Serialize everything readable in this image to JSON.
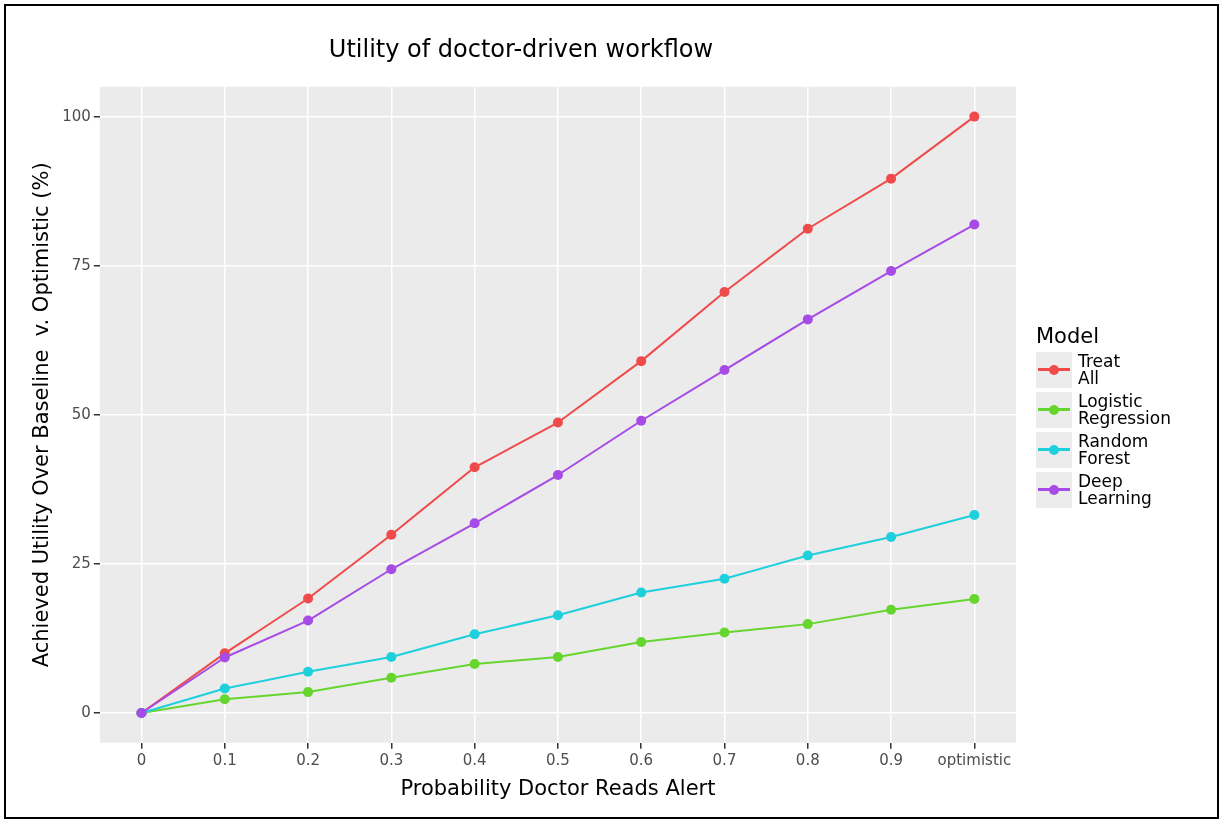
{
  "chart_data": {
    "type": "line",
    "title": "Utility of doctor-driven workflow",
    "xlabel": "Probability Doctor Reads Alert",
    "ylabel": "Achieved Utility Over Baseline  v. Optimistic (%)",
    "legend_title": "Model",
    "categories": [
      "0",
      "0.1",
      "0.2",
      "0.3",
      "0.4",
      "0.5",
      "0.6",
      "0.7",
      "0.8",
      "0.9",
      "optimistic"
    ],
    "series": [
      {
        "name": "Treat All",
        "color": "#f04b4b",
        "values": [
          0,
          10,
          19.2,
          29.9,
          41.2,
          48.7,
          59,
          70.6,
          81.2,
          89.6,
          100
        ]
      },
      {
        "name": "Logistic Regression",
        "color": "#66d62e",
        "values": [
          0,
          2.3,
          3.5,
          5.9,
          8.2,
          9.4,
          11.9,
          13.5,
          14.9,
          17.3,
          19.1
        ]
      },
      {
        "name": "Random Forest",
        "color": "#1ecfdc",
        "values": [
          0,
          4.1,
          6.9,
          9.4,
          13.2,
          16.4,
          20.2,
          22.5,
          26.4,
          29.5,
          33.2
        ]
      },
      {
        "name": "Deep Learning",
        "color": "#a64be6",
        "values": [
          0,
          9.3,
          15.5,
          24.1,
          31.8,
          39.9,
          49,
          57.5,
          66,
          74.1,
          81.9
        ]
      }
    ],
    "ylim": [
      -5,
      105
    ],
    "yticks": [
      0,
      25,
      50,
      75,
      100
    ],
    "grid": true,
    "legend": "right",
    "marker": "circle",
    "line_style": "solid"
  }
}
